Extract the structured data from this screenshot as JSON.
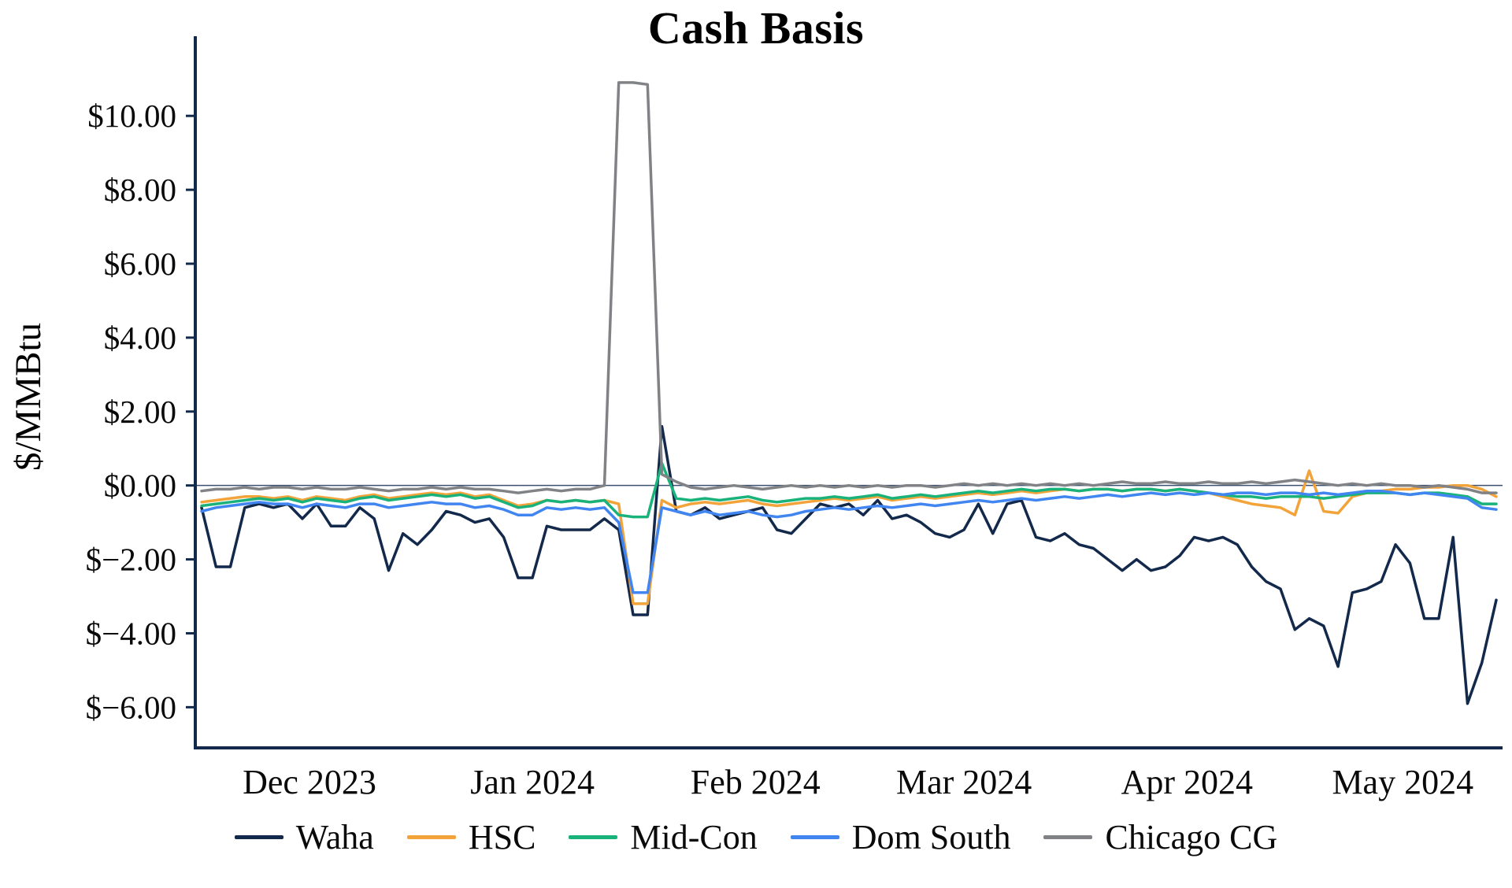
{
  "chart_data": {
    "type": "line",
    "title": "Cash Basis",
    "xlabel": "",
    "ylabel": "$/MMBtu",
    "ylim": [
      -7.1,
      11.9
    ],
    "grid": "zero-line-only",
    "legend_position": "bottom",
    "x_description": "Daily series sampled every 2 days from 2023-11-16 to 2024-05-14 (91 points)",
    "colors": {
      "axis": "#13294b",
      "zero_line": "#3a5070",
      "text": "#000000",
      "background": "#ffffff"
    },
    "y_ticks": [
      {
        "label": "$10.00",
        "v": 10
      },
      {
        "label": "$8.00",
        "v": 8
      },
      {
        "label": "$6.00",
        "v": 6
      },
      {
        "label": "$4.00",
        "v": 4
      },
      {
        "label": "$2.00",
        "v": 2
      },
      {
        "label": "$0.00",
        "v": 0
      },
      {
        "label": "$−2.00",
        "v": -2
      },
      {
        "label": "$−4.00",
        "v": -4
      },
      {
        "label": "$−6.00",
        "v": -6
      }
    ],
    "x_ticks": [
      {
        "label": "Dec 2023",
        "i": 7.5
      },
      {
        "label": "Jan 2024",
        "i": 23
      },
      {
        "label": "Feb 2024",
        "i": 38.5
      },
      {
        "label": "Mar 2024",
        "i": 53
      },
      {
        "label": "Apr 2024",
        "i": 68.5
      },
      {
        "label": "May 2024",
        "i": 83.5
      }
    ],
    "series": [
      {
        "name": "Waha",
        "color": "#13294b",
        "values": [
          -0.6,
          -2.2,
          -2.2,
          -0.6,
          -0.5,
          -0.6,
          -0.5,
          -0.9,
          -0.5,
          -1.1,
          -1.1,
          -0.6,
          -0.9,
          -2.3,
          -1.3,
          -1.6,
          -1.2,
          -0.7,
          -0.8,
          -1.0,
          -0.9,
          -1.4,
          -2.5,
          -2.5,
          -1.1,
          -1.2,
          -1.2,
          -1.2,
          -0.9,
          -1.2,
          -3.5,
          -3.5,
          1.6,
          -0.7,
          -0.8,
          -0.6,
          -0.9,
          -0.8,
          -0.7,
          -0.6,
          -1.2,
          -1.3,
          -0.9,
          -0.5,
          -0.6,
          -0.5,
          -0.8,
          -0.4,
          -0.9,
          -0.8,
          -1.0,
          -1.3,
          -1.4,
          -1.2,
          -0.5,
          -1.3,
          -0.5,
          -0.4,
          -1.4,
          -1.5,
          -1.3,
          -1.6,
          -1.7,
          -2.0,
          -2.3,
          -2.0,
          -2.3,
          -2.2,
          -1.9,
          -1.4,
          -1.5,
          -1.4,
          -1.6,
          -2.2,
          -2.6,
          -2.8,
          -3.9,
          -3.6,
          -3.8,
          -4.9,
          -2.9,
          -2.8,
          -2.6,
          -1.6,
          -2.1,
          -3.6,
          -3.6,
          -1.4,
          -5.9,
          -4.8,
          -3.1
        ]
      },
      {
        "name": "HSC",
        "color": "#f2a33a",
        "values": [
          -0.45,
          -0.4,
          -0.35,
          -0.3,
          -0.3,
          -0.35,
          -0.3,
          -0.4,
          -0.3,
          -0.35,
          -0.4,
          -0.3,
          -0.25,
          -0.35,
          -0.3,
          -0.25,
          -0.2,
          -0.25,
          -0.2,
          -0.3,
          -0.25,
          -0.4,
          -0.55,
          -0.5,
          -0.4,
          -0.45,
          -0.4,
          -0.45,
          -0.4,
          -0.5,
          -3.2,
          -3.2,
          -0.4,
          -0.6,
          -0.5,
          -0.45,
          -0.5,
          -0.45,
          -0.4,
          -0.5,
          -0.55,
          -0.5,
          -0.45,
          -0.4,
          -0.35,
          -0.4,
          -0.35,
          -0.3,
          -0.4,
          -0.35,
          -0.3,
          -0.35,
          -0.3,
          -0.25,
          -0.2,
          -0.25,
          -0.2,
          -0.15,
          -0.2,
          -0.15,
          -0.1,
          -0.15,
          -0.1,
          -0.1,
          -0.15,
          -0.1,
          -0.1,
          -0.15,
          -0.1,
          -0.15,
          -0.2,
          -0.3,
          -0.4,
          -0.5,
          -0.55,
          -0.6,
          -0.8,
          0.4,
          -0.7,
          -0.75,
          -0.3,
          -0.2,
          -0.15,
          -0.1,
          -0.1,
          -0.05,
          -0.05,
          0.0,
          0.0,
          -0.1,
          -0.3
        ]
      },
      {
        "name": "Mid-Con",
        "color": "#19b27b",
        "values": [
          -0.55,
          -0.5,
          -0.45,
          -0.4,
          -0.35,
          -0.4,
          -0.35,
          -0.45,
          -0.35,
          -0.4,
          -0.45,
          -0.35,
          -0.3,
          -0.4,
          -0.35,
          -0.3,
          -0.25,
          -0.3,
          -0.25,
          -0.35,
          -0.3,
          -0.45,
          -0.6,
          -0.55,
          -0.4,
          -0.45,
          -0.4,
          -0.45,
          -0.4,
          -0.8,
          -0.85,
          -0.85,
          0.6,
          -0.35,
          -0.4,
          -0.35,
          -0.4,
          -0.35,
          -0.3,
          -0.4,
          -0.45,
          -0.4,
          -0.35,
          -0.35,
          -0.3,
          -0.35,
          -0.3,
          -0.25,
          -0.35,
          -0.3,
          -0.25,
          -0.3,
          -0.25,
          -0.2,
          -0.15,
          -0.2,
          -0.15,
          -0.1,
          -0.15,
          -0.1,
          -0.1,
          -0.15,
          -0.1,
          -0.1,
          -0.15,
          -0.1,
          -0.1,
          -0.15,
          -0.1,
          -0.15,
          -0.2,
          -0.25,
          -0.3,
          -0.3,
          -0.35,
          -0.3,
          -0.3,
          -0.3,
          -0.35,
          -0.3,
          -0.25,
          -0.2,
          -0.2,
          -0.2,
          -0.25,
          -0.2,
          -0.2,
          -0.25,
          -0.3,
          -0.5,
          -0.5
        ]
      },
      {
        "name": "Dom South",
        "color": "#4186f0",
        "values": [
          -0.7,
          -0.6,
          -0.55,
          -0.5,
          -0.45,
          -0.5,
          -0.5,
          -0.6,
          -0.5,
          -0.55,
          -0.6,
          -0.5,
          -0.5,
          -0.6,
          -0.55,
          -0.5,
          -0.45,
          -0.5,
          -0.5,
          -0.6,
          -0.55,
          -0.65,
          -0.8,
          -0.8,
          -0.6,
          -0.65,
          -0.6,
          -0.65,
          -0.6,
          -1.0,
          -2.9,
          -2.9,
          -0.6,
          -0.7,
          -0.8,
          -0.7,
          -0.8,
          -0.75,
          -0.7,
          -0.8,
          -0.85,
          -0.8,
          -0.7,
          -0.65,
          -0.6,
          -0.65,
          -0.6,
          -0.55,
          -0.6,
          -0.55,
          -0.5,
          -0.55,
          -0.5,
          -0.45,
          -0.4,
          -0.45,
          -0.4,
          -0.35,
          -0.4,
          -0.35,
          -0.3,
          -0.35,
          -0.3,
          -0.25,
          -0.3,
          -0.25,
          -0.2,
          -0.25,
          -0.2,
          -0.25,
          -0.2,
          -0.25,
          -0.2,
          -0.2,
          -0.25,
          -0.2,
          -0.2,
          -0.25,
          -0.2,
          -0.25,
          -0.2,
          -0.15,
          -0.15,
          -0.2,
          -0.25,
          -0.2,
          -0.25,
          -0.3,
          -0.35,
          -0.6,
          -0.65
        ]
      },
      {
        "name": "Chicago CG",
        "color": "#808285",
        "values": [
          -0.15,
          -0.1,
          -0.1,
          -0.05,
          -0.1,
          -0.05,
          -0.05,
          -0.1,
          -0.05,
          -0.1,
          -0.1,
          -0.05,
          -0.1,
          -0.15,
          -0.1,
          -0.1,
          -0.05,
          -0.1,
          -0.05,
          -0.1,
          -0.1,
          -0.15,
          -0.2,
          -0.15,
          -0.1,
          -0.15,
          -0.1,
          -0.1,
          0.0,
          10.9,
          10.9,
          10.85,
          0.3,
          0.1,
          -0.05,
          -0.1,
          -0.05,
          0.0,
          -0.05,
          -0.1,
          -0.05,
          0.0,
          -0.05,
          0.0,
          -0.05,
          0.0,
          -0.05,
          0.0,
          -0.05,
          0.0,
          0.0,
          -0.05,
          0.0,
          0.05,
          0.0,
          0.05,
          0.0,
          0.05,
          0.0,
          0.05,
          0.0,
          0.05,
          0.0,
          0.05,
          0.1,
          0.05,
          0.05,
          0.1,
          0.05,
          0.05,
          0.1,
          0.05,
          0.05,
          0.1,
          0.05,
          0.1,
          0.15,
          0.1,
          0.05,
          0.0,
          0.05,
          0.0,
          0.05,
          0.0,
          0.0,
          -0.05,
          0.0,
          -0.05,
          -0.1,
          -0.2,
          -0.2
        ]
      }
    ]
  }
}
